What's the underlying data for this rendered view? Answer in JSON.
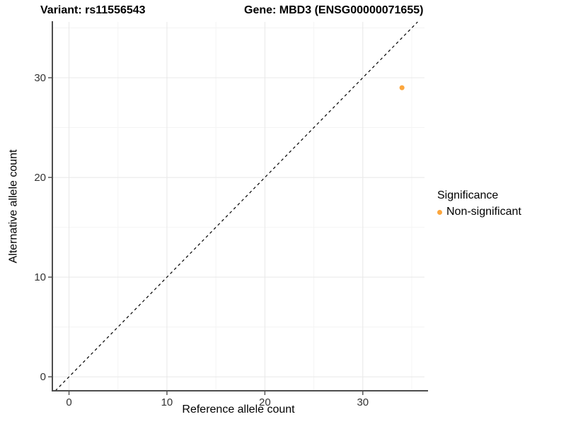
{
  "chart_data": {
    "type": "scatter",
    "title_left": "Variant: rs11556543",
    "title_right": "Gene: MBD3 (ENSG00000071655)",
    "xlabel": "Reference allele count",
    "ylabel": "Alternative allele count",
    "xlim": [
      -1.7,
      36.3
    ],
    "ylim": [
      -1.4,
      35.6
    ],
    "xticks": [
      0,
      10,
      20,
      30
    ],
    "yticks": [
      0,
      10,
      20,
      30
    ],
    "xticks_minor": [
      5,
      15,
      25,
      35
    ],
    "yticks_minor": [
      5,
      15,
      25,
      35
    ],
    "grid": {
      "major_color": "#e8e8e8",
      "minor_color": "#f4f4f4",
      "background": "#ffffff"
    },
    "identity_line": {
      "equation": "y = x",
      "style": "dashed",
      "color": "#000000"
    },
    "series": [
      {
        "name": "Non-significant",
        "color": "#FCA63D",
        "points": [
          {
            "x": 34,
            "y": 29
          }
        ]
      }
    ],
    "legend": {
      "title": "Significance",
      "position": "right",
      "items": [
        {
          "label": "Non-significant",
          "color": "#FCA63D"
        }
      ]
    },
    "point_radius": 3.5
  },
  "colors": {
    "axis_line": "#4d4d4d",
    "tick_mark": "#4d4d4d",
    "tick_label": "#333333"
  }
}
